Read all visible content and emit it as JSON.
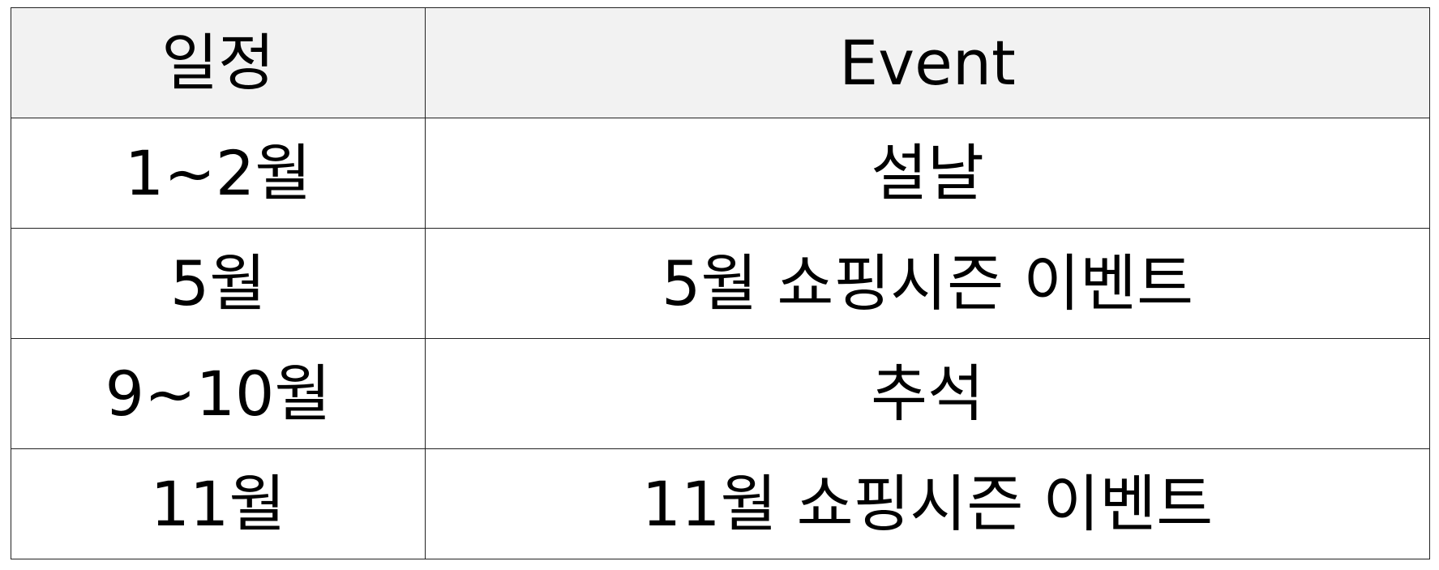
{
  "table": {
    "headers": [
      "일정",
      "Event"
    ],
    "rows": [
      [
        "1~2월",
        "설날"
      ],
      [
        "5월",
        "5월 쇼핑시즌 이벤트"
      ],
      [
        "9~10월",
        "추석"
      ],
      [
        "11월",
        "11월 쇼핑시즌 이벤트"
      ]
    ]
  },
  "colors": {
    "header_background": "#f2f2f2",
    "border": "#222222",
    "text": "#000000"
  }
}
